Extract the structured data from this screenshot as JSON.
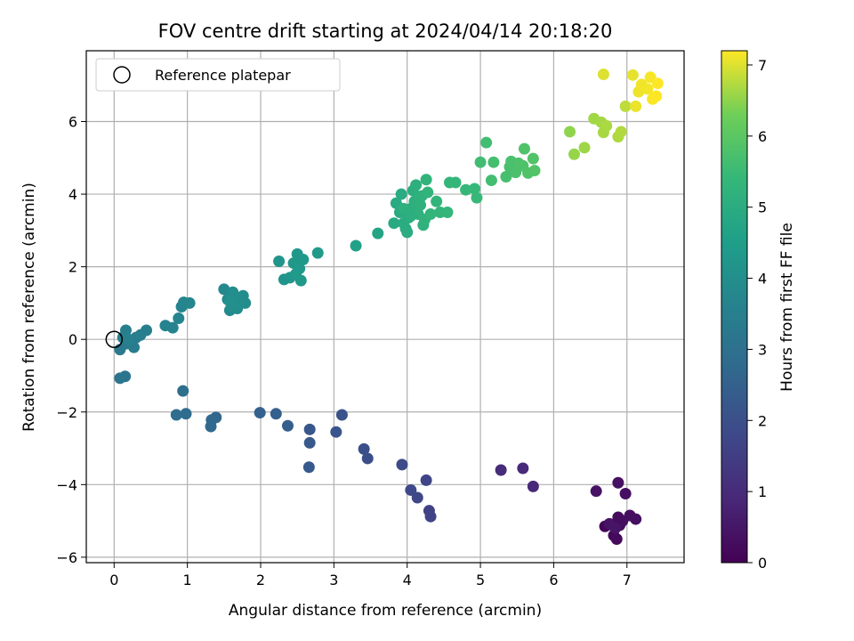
{
  "chart_data": {
    "type": "scatter",
    "title": "FOV centre drift starting at 2024/04/14 20:18:20",
    "xlabel": "Angular distance from reference (arcmin)",
    "ylabel": "Rotation from reference (arcmin)",
    "xlim": [
      -0.38,
      7.78
    ],
    "ylim": [
      -6.15,
      7.95
    ],
    "xticks": [
      0,
      1,
      2,
      3,
      4,
      5,
      6,
      7
    ],
    "yticks": [
      -6,
      -4,
      -2,
      0,
      2,
      4,
      6
    ],
    "grid": true,
    "legend": {
      "placement": "top-left",
      "entries": [
        "Reference platepar"
      ]
    },
    "reference_point": {
      "x": 0,
      "y": 0
    },
    "colorbar": {
      "label": "Hours from first FF file",
      "min": 0,
      "max": 7.2,
      "ticks": [
        0,
        1,
        2,
        3,
        4,
        5,
        6,
        7
      ],
      "colormap": "viridis"
    },
    "points": [
      [
        6.7,
        -5.15,
        0.1
      ],
      [
        6.78,
        -5.1,
        0.15
      ],
      [
        6.82,
        -5.4,
        0.18
      ],
      [
        6.86,
        -5.5,
        0.2
      ],
      [
        6.9,
        -5.12,
        0.22
      ],
      [
        6.88,
        -4.9,
        0.25
      ],
      [
        6.94,
        -5.0,
        0.28
      ],
      [
        7.04,
        -4.85,
        0.3
      ],
      [
        7.12,
        -4.95,
        0.32
      ],
      [
        6.98,
        -4.25,
        0.35
      ],
      [
        6.88,
        -3.95,
        0.38
      ],
      [
        6.58,
        -4.18,
        0.4
      ],
      [
        6.76,
        -5.08,
        0.42
      ],
      [
        6.84,
        -5.2,
        0.45
      ],
      [
        5.72,
        -4.05,
        0.9
      ],
      [
        5.58,
        -3.55,
        0.95
      ],
      [
        5.28,
        -3.6,
        1.0
      ],
      [
        4.3,
        -4.72,
        1.6
      ],
      [
        4.32,
        -4.88,
        1.65
      ],
      [
        4.26,
        -3.88,
        1.7
      ],
      [
        4.14,
        -4.36,
        1.75
      ],
      [
        4.05,
        -4.15,
        1.8
      ],
      [
        3.93,
        -3.45,
        1.85
      ],
      [
        3.46,
        -3.28,
        1.95
      ],
      [
        3.41,
        -3.02,
        2.0
      ],
      [
        3.11,
        -2.08,
        2.1
      ],
      [
        3.03,
        -2.55,
        2.15
      ],
      [
        2.67,
        -2.48,
        2.2
      ],
      [
        2.67,
        -2.85,
        2.25
      ],
      [
        2.66,
        -3.52,
        2.3
      ],
      [
        2.37,
        -2.38,
        2.4
      ],
      [
        2.21,
        -2.05,
        2.45
      ],
      [
        1.99,
        -2.02,
        2.5
      ],
      [
        1.39,
        -2.15,
        2.65
      ],
      [
        1.33,
        -2.22,
        2.7
      ],
      [
        1.32,
        -2.4,
        2.72
      ],
      [
        0.98,
        -2.05,
        2.85
      ],
      [
        0.85,
        -2.08,
        2.9
      ],
      [
        0.94,
        -1.42,
        2.95
      ],
      [
        0.15,
        -1.02,
        3.1
      ],
      [
        0.08,
        -1.07,
        3.15
      ],
      [
        0.08,
        -0.28,
        3.3
      ],
      [
        0.16,
        -0.12,
        3.32
      ],
      [
        0.22,
        -0.08,
        3.35
      ],
      [
        0.27,
        -0.22,
        3.38
      ],
      [
        0.3,
        0.05,
        3.4
      ],
      [
        0.36,
        0.12,
        3.42
      ],
      [
        0.44,
        0.25,
        3.45
      ],
      [
        0.12,
        0.05,
        3.48
      ],
      [
        0.16,
        0.25,
        3.5
      ],
      [
        0.2,
        0.0,
        3.52
      ],
      [
        0.7,
        0.38,
        3.6
      ],
      [
        0.8,
        0.32,
        3.62
      ],
      [
        0.88,
        0.58,
        3.65
      ],
      [
        0.92,
        0.9,
        3.68
      ],
      [
        0.95,
        1.02,
        3.7
      ],
      [
        1.03,
        1.0,
        3.72
      ],
      [
        1.5,
        1.38,
        3.8
      ],
      [
        1.55,
        1.1,
        3.82
      ],
      [
        1.58,
        0.8,
        3.84
      ],
      [
        1.62,
        1.3,
        3.86
      ],
      [
        1.65,
        1.0,
        3.88
      ],
      [
        1.68,
        0.85,
        3.9
      ],
      [
        1.72,
        1.05,
        3.92
      ],
      [
        1.76,
        1.2,
        3.94
      ],
      [
        1.79,
        1.0,
        3.96
      ],
      [
        1.6,
        0.9,
        3.98
      ],
      [
        1.7,
        0.95,
        4.0
      ],
      [
        1.62,
        1.25,
        4.02
      ],
      [
        1.58,
        1.05,
        4.04
      ],
      [
        2.25,
        2.15,
        4.2
      ],
      [
        2.32,
        1.65,
        4.22
      ],
      [
        2.4,
        1.7,
        4.24
      ],
      [
        2.45,
        2.1,
        4.26
      ],
      [
        2.5,
        2.35,
        4.28
      ],
      [
        2.53,
        1.95,
        4.3
      ],
      [
        2.55,
        1.62,
        4.32
      ],
      [
        2.58,
        2.2,
        4.34
      ],
      [
        2.48,
        1.8,
        4.36
      ],
      [
        2.78,
        2.38,
        4.4
      ],
      [
        3.3,
        2.58,
        4.6
      ],
      [
        3.6,
        2.92,
        4.7
      ],
      [
        3.82,
        3.2,
        4.9
      ],
      [
        3.85,
        3.75,
        4.92
      ],
      [
        3.9,
        3.5,
        4.94
      ],
      [
        3.92,
        4.0,
        4.96
      ],
      [
        3.95,
        3.2,
        4.98
      ],
      [
        3.98,
        3.05,
        5.0
      ],
      [
        4.0,
        2.95,
        5.02
      ],
      [
        4.02,
        3.35,
        5.04
      ],
      [
        4.05,
        3.6,
        5.06
      ],
      [
        4.08,
        4.1,
        5.08
      ],
      [
        4.1,
        3.8,
        5.1
      ],
      [
        4.12,
        4.25,
        5.12
      ],
      [
        4.15,
        3.45,
        5.14
      ],
      [
        4.18,
        3.7,
        5.16
      ],
      [
        4.2,
        3.95,
        5.18
      ],
      [
        4.22,
        3.15,
        5.2
      ],
      [
        4.24,
        3.3,
        5.22
      ],
      [
        4.26,
        4.4,
        5.24
      ],
      [
        4.28,
        4.05,
        5.26
      ],
      [
        4.32,
        3.45,
        5.28
      ],
      [
        4.4,
        3.8,
        5.3
      ],
      [
        4.45,
        3.5,
        5.32
      ],
      [
        4.55,
        3.5,
        5.34
      ],
      [
        4.58,
        4.32,
        5.36
      ],
      [
        4.66,
        4.32,
        5.38
      ],
      [
        4.8,
        4.12,
        5.4
      ],
      [
        4.92,
        4.15,
        5.42
      ],
      [
        4.95,
        3.9,
        5.44
      ],
      [
        3.95,
        3.6,
        5.1
      ],
      [
        4.05,
        3.4,
        5.08
      ],
      [
        5.0,
        4.88,
        5.6
      ],
      [
        5.08,
        5.42,
        5.62
      ],
      [
        5.15,
        4.38,
        5.64
      ],
      [
        5.18,
        4.88,
        5.66
      ],
      [
        5.35,
        4.48,
        5.7
      ],
      [
        5.4,
        4.75,
        5.72
      ],
      [
        5.42,
        4.9,
        5.74
      ],
      [
        5.48,
        4.6,
        5.76
      ],
      [
        5.52,
        4.85,
        5.78
      ],
      [
        5.58,
        4.78,
        5.8
      ],
      [
        5.6,
        5.25,
        5.82
      ],
      [
        5.65,
        4.58,
        5.84
      ],
      [
        5.72,
        4.98,
        5.86
      ],
      [
        5.74,
        4.65,
        5.88
      ],
      [
        6.22,
        5.72,
        6.5
      ],
      [
        6.28,
        5.1,
        6.55
      ],
      [
        6.42,
        5.28,
        6.6
      ],
      [
        6.55,
        6.08,
        6.62
      ],
      [
        6.65,
        5.98,
        6.64
      ],
      [
        6.68,
        5.7,
        6.66
      ],
      [
        6.72,
        5.88,
        6.68
      ],
      [
        6.88,
        5.58,
        6.7
      ],
      [
        6.92,
        5.72,
        6.72
      ],
      [
        6.98,
        6.42,
        6.8
      ],
      [
        6.68,
        7.3,
        7.0
      ],
      [
        7.08,
        7.28,
        7.05
      ],
      [
        7.12,
        6.42,
        7.08
      ],
      [
        7.16,
        6.82,
        7.1
      ],
      [
        7.2,
        7.02,
        7.12
      ],
      [
        7.28,
        6.9,
        7.14
      ],
      [
        7.32,
        7.22,
        7.16
      ],
      [
        7.35,
        6.62,
        7.18
      ],
      [
        7.4,
        6.7,
        7.2
      ],
      [
        7.42,
        7.05,
        7.2
      ]
    ]
  }
}
